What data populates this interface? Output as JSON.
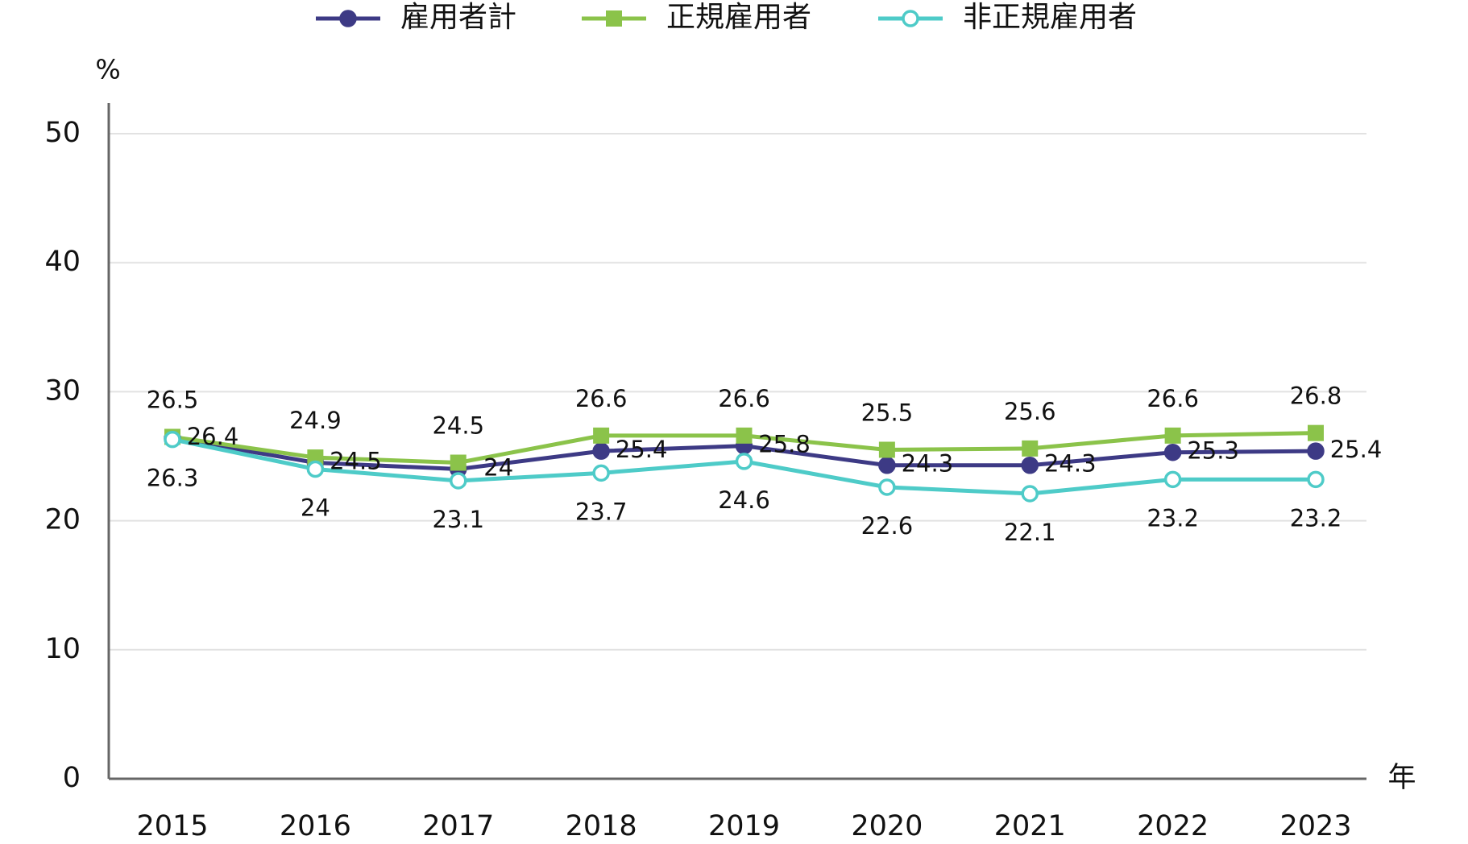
{
  "chart_data": {
    "type": "line",
    "xlabel": "年",
    "ylabel": "%",
    "categories": [
      "2015",
      "2016",
      "2017",
      "2018",
      "2019",
      "2020",
      "2021",
      "2022",
      "2023"
    ],
    "series": [
      {
        "name": "雇用者計",
        "color": "#3d3a85",
        "marker": "circle",
        "values": [
          26.4,
          24.5,
          24.0,
          25.4,
          25.8,
          24.3,
          24.3,
          25.3,
          25.4
        ]
      },
      {
        "name": "正規雇用者",
        "color": "#8bc34a",
        "marker": "square",
        "values": [
          26.5,
          24.9,
          24.5,
          26.6,
          26.6,
          25.5,
          25.6,
          26.6,
          26.8
        ]
      },
      {
        "name": "非正規雇用者",
        "color": "#4ecbc8",
        "marker": "hollow-circle",
        "values": [
          26.3,
          24.0,
          23.1,
          23.7,
          24.6,
          22.6,
          22.1,
          23.2,
          23.2
        ]
      }
    ],
    "ylim": [
      0,
      50
    ],
    "yticks": [
      0,
      10,
      20,
      30,
      40,
      50
    ],
    "grid": true,
    "legend": "top"
  }
}
